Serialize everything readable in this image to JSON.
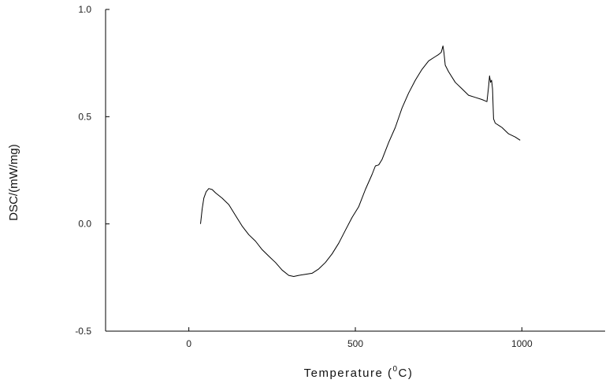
{
  "chart_data": {
    "type": "line",
    "title": "",
    "xlabel": "Temperature (",
    "xlabel_sup": "0",
    "xlabel_suffix": "C)",
    "ylabel": "DSC/(mW/mg)",
    "xlim": [
      -250,
      1250
    ],
    "ylim": [
      -0.5,
      1.0
    ],
    "x_ticks": [
      0,
      500,
      1000
    ],
    "x_tick_labels": [
      "0",
      "500",
      "1000"
    ],
    "y_ticks": [
      -0.5,
      0.0,
      0.5,
      1.0
    ],
    "y_tick_labels": [
      "-0.5",
      "0.0",
      "0.5",
      "1.0"
    ],
    "grid": false,
    "legend": "none",
    "line_color": "#000000",
    "series": [
      {
        "x": [
          35,
          40,
          45,
          52,
          60,
          70,
          80,
          100,
          120,
          140,
          160,
          180,
          200,
          220,
          240,
          260,
          280,
          300,
          315,
          330,
          350,
          370,
          390,
          410,
          430,
          450,
          470,
          490,
          510,
          530,
          550,
          560,
          570,
          580,
          600,
          620,
          640,
          660,
          680,
          700,
          720,
          740,
          750,
          758,
          763,
          766,
          770,
          780,
          800,
          820,
          840,
          860,
          880,
          895,
          900,
          903,
          906,
          909,
          912,
          915,
          920,
          940,
          960,
          980,
          995
        ],
        "y": [
          0.0,
          0.07,
          0.12,
          0.15,
          0.165,
          0.16,
          0.145,
          0.12,
          0.09,
          0.04,
          -0.01,
          -0.05,
          -0.08,
          -0.12,
          -0.15,
          -0.18,
          -0.215,
          -0.24,
          -0.245,
          -0.24,
          -0.235,
          -0.23,
          -0.21,
          -0.18,
          -0.14,
          -0.09,
          -0.03,
          0.03,
          0.08,
          0.16,
          0.23,
          0.27,
          0.275,
          0.3,
          0.38,
          0.45,
          0.54,
          0.61,
          0.67,
          0.72,
          0.76,
          0.78,
          0.79,
          0.8,
          0.83,
          0.8,
          0.74,
          0.71,
          0.66,
          0.63,
          0.6,
          0.59,
          0.58,
          0.57,
          0.64,
          0.69,
          0.66,
          0.67,
          0.63,
          0.49,
          0.47,
          0.45,
          0.42,
          0.405,
          0.39
        ]
      }
    ]
  }
}
